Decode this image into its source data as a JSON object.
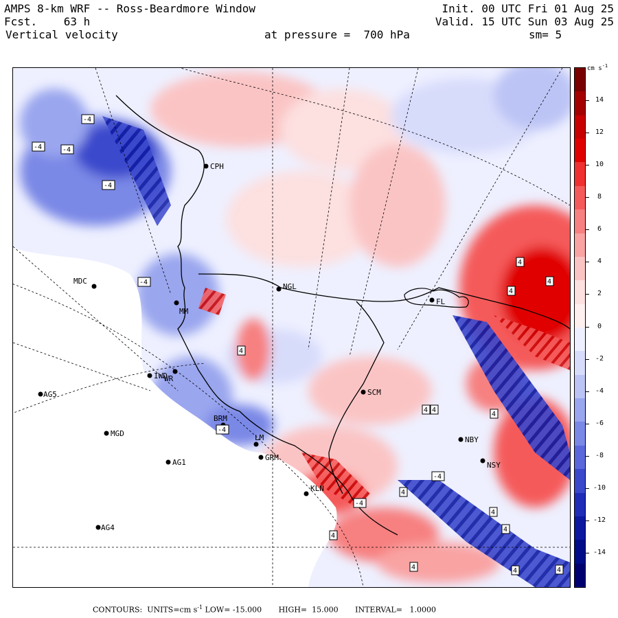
{
  "header": {
    "model_title": "AMPS 8-km WRF -- Ross-Beardmore Window",
    "forecast": "Fcst.    63 h",
    "field": "Vertical velocity",
    "init": "Init. 00 UTC Fri 01 Aug 25",
    "valid": "Valid. 15 UTC Sun 03 Aug 25",
    "pressure": "at pressure =  700 hPa",
    "smoothing": "sm= 5"
  },
  "colorbar": {
    "units": "cm s",
    "units_exp": "-1",
    "tick_labels": [
      "14",
      "12",
      "10",
      "8",
      "6",
      "4",
      "2",
      "0",
      "-2",
      "-4",
      "-6",
      "-8",
      "-10",
      "-12",
      "-14"
    ],
    "colors": [
      "#7a0000",
      "#a50000",
      "#c80000",
      "#e00000",
      "#f03030",
      "#f55a5a",
      "#f78080",
      "#f9a3a3",
      "#fbc4c4",
      "#fde0e0",
      "#fff0f0",
      "#eef0ff",
      "#d8dcfb",
      "#bcc4f5",
      "#9aa6ee",
      "#7a88e6",
      "#5a68dc",
      "#3a48cc",
      "#1e2cb8",
      "#0c18a0",
      "#000c88",
      "#000070"
    ]
  },
  "stations": [
    {
      "name": "CPH"
    },
    {
      "name": "MDC"
    },
    {
      "name": "NGL"
    },
    {
      "name": "FL"
    },
    {
      "name": "WR"
    },
    {
      "name": "IWD"
    },
    {
      "name": "AG5"
    },
    {
      "name": "MGD"
    },
    {
      "name": "SCM"
    },
    {
      "name": "AG1"
    },
    {
      "name": "GRM"
    },
    {
      "name": "AG4"
    },
    {
      "name": "NBY"
    },
    {
      "name": "NSY"
    },
    {
      "name": "BRM"
    },
    {
      "name": "LM"
    },
    {
      "name": "KLN"
    },
    {
      "name": "MM"
    }
  ],
  "contour_labels": {
    "neg": "-4",
    "pos": "4"
  },
  "footer": {
    "contours": "CONTOURS:  UNITS=cm s",
    "units_exp": "-1",
    "low": " LOW= -15.000",
    "high": "HIGH=  15.000",
    "interval": "INTERVAL=   1.0000"
  }
}
